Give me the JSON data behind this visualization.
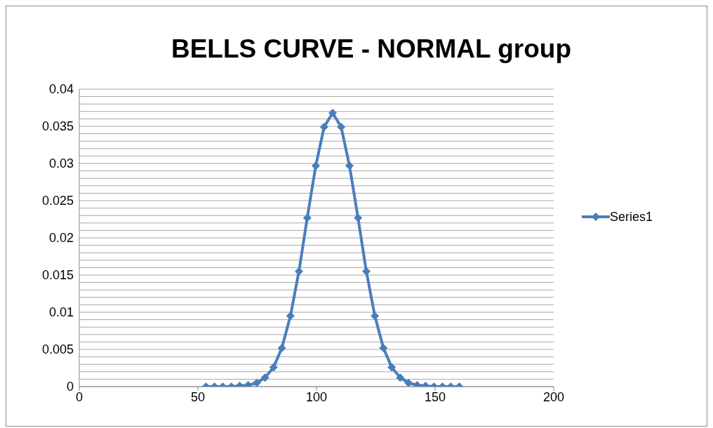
{
  "chart_data": {
    "type": "line",
    "title": "BELLS CURVE - NORMAL group",
    "x": [
      53.4,
      57.0,
      60.5,
      64.1,
      67.6,
      71.2,
      74.8,
      78.3,
      81.9,
      85.4,
      89.0,
      92.6,
      96.1,
      99.7,
      103.2,
      106.8,
      110.4,
      113.9,
      117.5,
      121.0,
      124.6,
      128.2,
      131.7,
      135.3,
      138.8,
      142.4,
      146.0,
      149.5,
      153.1,
      156.6,
      160.2
    ],
    "series": [
      {
        "name": "Series1",
        "color": "#4a7ebb",
        "values": [
          0,
          0,
          0,
          0,
          0.0001,
          0.0002,
          0.0005,
          0.0012,
          0.0026,
          0.0052,
          0.0095,
          0.0155,
          0.0227,
          0.0297,
          0.0349,
          0.0368,
          0.0349,
          0.0297,
          0.0227,
          0.0155,
          0.0095,
          0.0052,
          0.0026,
          0.0012,
          0.0005,
          0.0002,
          0.0001,
          0,
          0,
          0,
          0
        ]
      }
    ],
    "xlim": [
      0,
      200
    ],
    "xticks": [
      0,
      50,
      100,
      150,
      200
    ],
    "ylim": [
      0,
      0.04
    ],
    "yticks": [
      0,
      {
        "value": 0.001,
        "label": null
      },
      {
        "value": 0.002,
        "label": null
      },
      {
        "value": 0.003,
        "label": null
      },
      {
        "value": 0.004,
        "label": null
      },
      0.005,
      {
        "value": 0.006,
        "label": null
      },
      {
        "value": 0.007,
        "label": null
      },
      {
        "value": 0.008,
        "label": null
      },
      {
        "value": 0.009,
        "label": null
      },
      0.01,
      {
        "value": 0.011,
        "label": null
      },
      {
        "value": 0.012,
        "label": null
      },
      {
        "value": 0.013,
        "label": null
      },
      {
        "value": 0.014,
        "label": null
      },
      0.015,
      {
        "value": 0.016,
        "label": null
      },
      {
        "value": 0.017,
        "label": null
      },
      {
        "value": 0.018,
        "label": null
      },
      {
        "value": 0.019,
        "label": null
      },
      0.02,
      {
        "value": 0.021,
        "label": null
      },
      {
        "value": 0.022,
        "label": null
      },
      {
        "value": 0.023,
        "label": null
      },
      {
        "value": 0.024,
        "label": null
      },
      0.025,
      {
        "value": 0.026,
        "label": null
      },
      {
        "value": 0.027,
        "label": null
      },
      {
        "value": 0.028,
        "label": null
      },
      {
        "value": 0.029,
        "label": null
      },
      0.03,
      {
        "value": 0.031,
        "label": null
      },
      {
        "value": 0.032,
        "label": null
      },
      {
        "value": 0.033,
        "label": null
      },
      {
        "value": 0.034,
        "label": null
      },
      0.035,
      {
        "value": 0.036,
        "label": null
      },
      {
        "value": 0.037,
        "label": null
      },
      {
        "value": 0.038,
        "label": null
      },
      {
        "value": 0.039,
        "label": null
      },
      0.04
    ],
    "grid": "y",
    "legend": "right",
    "marker": "diamond",
    "line_style": "solid"
  }
}
